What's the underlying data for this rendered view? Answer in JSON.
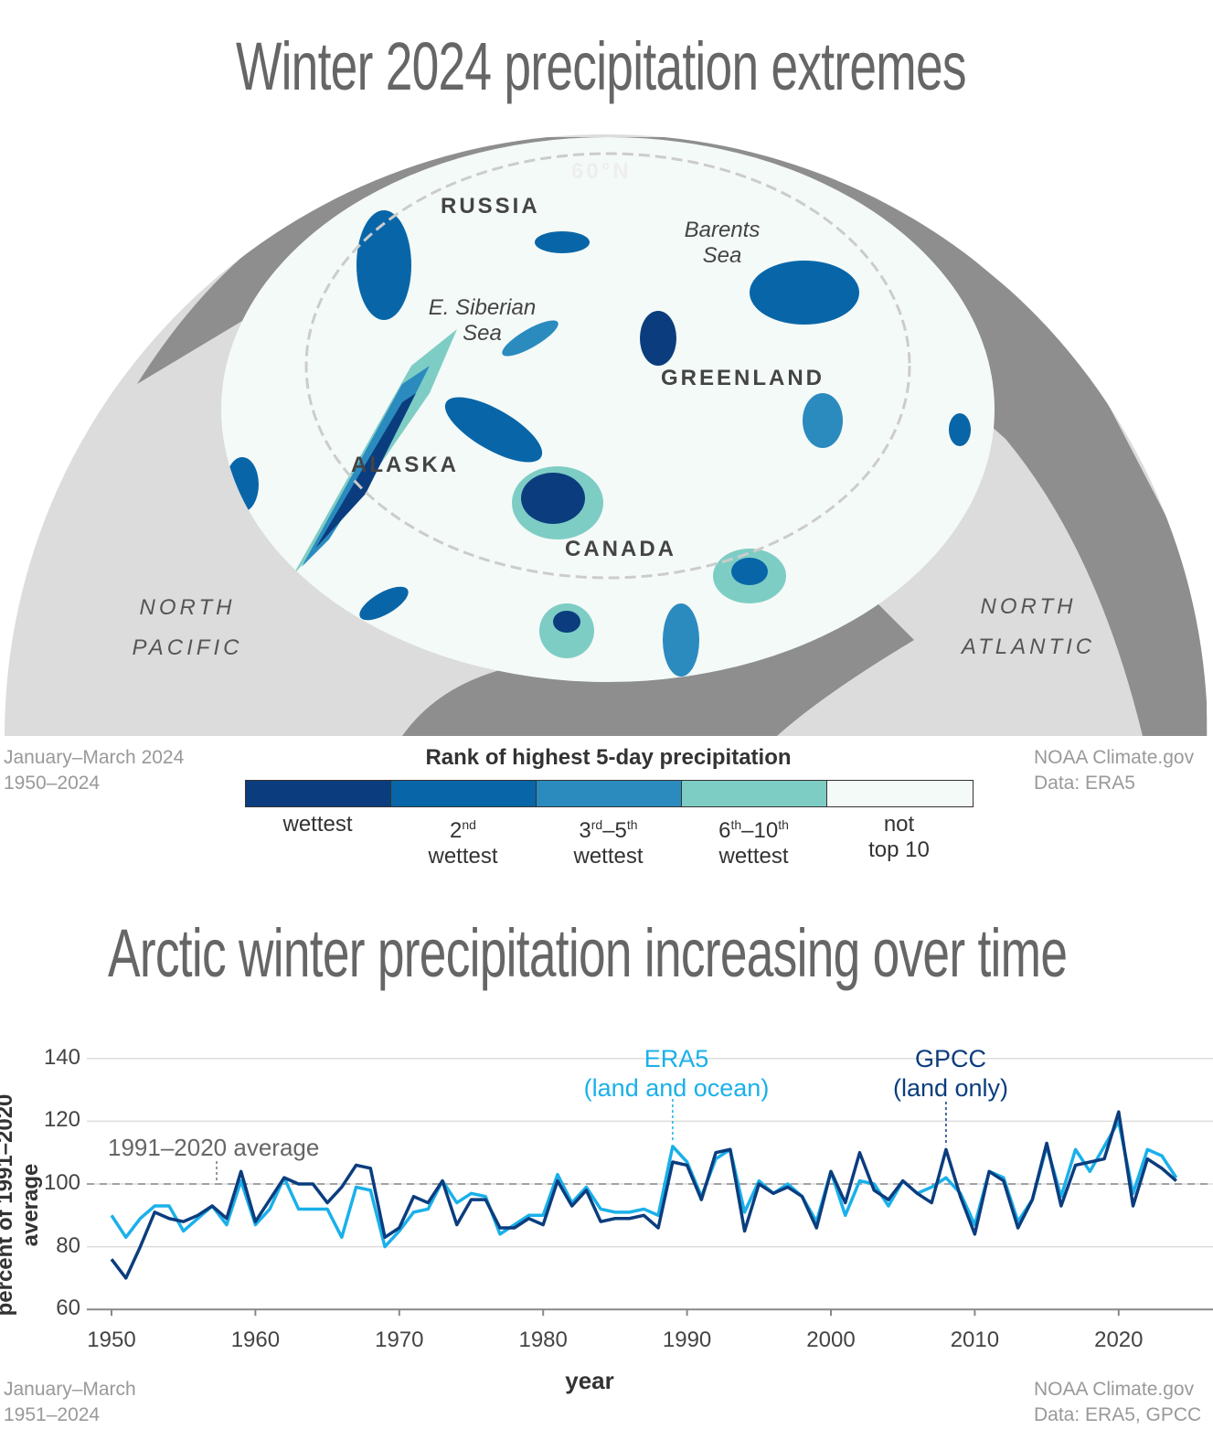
{
  "map_panel": {
    "title": "Winter 2024 precipitation extremes",
    "labels": {
      "lat": "60°N",
      "russia": "RUSSIA",
      "barents": [
        "Barents",
        "Sea"
      ],
      "esiberian": [
        "E. Siberian",
        "Sea"
      ],
      "greenland": "GREENLAND",
      "alaska": "ALASKA",
      "canada": "CANADA",
      "npacific": [
        "NORTH",
        "PACIFIC"
      ],
      "natlantic": [
        "NORTH",
        "ATLANTIC"
      ]
    },
    "footer_left": [
      "January–March 2024",
      "1950–2024"
    ],
    "footer_right": [
      "NOAA Climate.gov",
      "Data: ERA5"
    ],
    "legend": {
      "title": "Rank of highest 5-day precipitation",
      "items": [
        {
          "line1": "wettest",
          "line2": "",
          "color": "#0b3d7e"
        },
        {
          "line1": "2nd",
          "line2": "wettest",
          "color": "#0866a8"
        },
        {
          "line1": "3rd–5th",
          "line2": "wettest",
          "color": "#2b8bbf"
        },
        {
          "line1": "6th–10th",
          "line2": "wettest",
          "color": "#7ecdc5"
        },
        {
          "line1": "not",
          "line2": "top 10",
          "color": "#f4faf8"
        }
      ]
    }
  },
  "chart_data": {
    "type": "line",
    "title": "Arctic winter precipitation increasing over time",
    "xlabel": "year",
    "ylabel": "percent of 1991–2020 average",
    "ylim": [
      60,
      140
    ],
    "xlim": [
      1950,
      2025
    ],
    "yticks": [
      60,
      80,
      100,
      120,
      140
    ],
    "xticks": [
      1950,
      1960,
      1970,
      1980,
      1990,
      2000,
      2010,
      2020
    ],
    "grid": true,
    "reference_line": {
      "value": 100,
      "label": "1991–2020 average"
    },
    "x_start": 1950,
    "series": [
      {
        "name": "ERA5",
        "label2": "(land and ocean)",
        "color": "#1ab0ea",
        "values": [
          90,
          83,
          89,
          93,
          93,
          85,
          89,
          93,
          87,
          101,
          87,
          92,
          102,
          92,
          92,
          92,
          83,
          99,
          98,
          80,
          85,
          91,
          92,
          101,
          94,
          97,
          96,
          84,
          87,
          90,
          90,
          103,
          94,
          99,
          92,
          91,
          91,
          92,
          90,
          112,
          107,
          96,
          108,
          111,
          91,
          101,
          97,
          100,
          96,
          88,
          104,
          90,
          101,
          100,
          93,
          101,
          97,
          99,
          102,
          97,
          87,
          104,
          102,
          88,
          95,
          112,
          96,
          111,
          104,
          112,
          120,
          97,
          111,
          109,
          102
        ]
      },
      {
        "name": "GPCC",
        "label2": "(land only)",
        "color": "#0b3d7e",
        "values": [
          76,
          70,
          80,
          91,
          89,
          88,
          90,
          93,
          89,
          104,
          88,
          95,
          102,
          100,
          100,
          94,
          99,
          106,
          105,
          83,
          86,
          96,
          94,
          101,
          87,
          95,
          95,
          86,
          86,
          89,
          87,
          101,
          93,
          98,
          88,
          89,
          89,
          90,
          86,
          107,
          106,
          95,
          110,
          111,
          85,
          100,
          97,
          99,
          96,
          86,
          104,
          94,
          110,
          98,
          95,
          101,
          97,
          94,
          111,
          96,
          84,
          104,
          101,
          86,
          95,
          113,
          93,
          106,
          107,
          108,
          123,
          93,
          108,
          105,
          101
        ]
      }
    ],
    "footer_left": [
      "January–March",
      "1951–2024"
    ],
    "footer_right": [
      "NOAA Climate.gov",
      "Data: ERA5, GPCC"
    ]
  }
}
